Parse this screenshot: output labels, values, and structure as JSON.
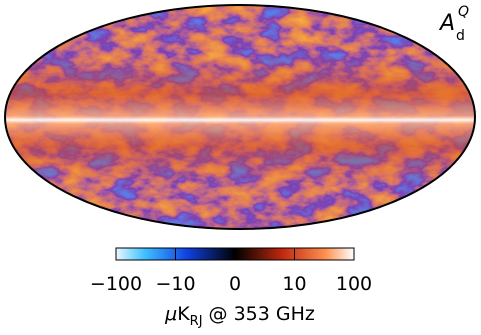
{
  "map": {
    "label": {
      "main": "A",
      "sub": "d",
      "sup": "Q"
    }
  },
  "colorbar": {
    "scale": "symlog",
    "linthresh": 10,
    "lim": [
      -100,
      100
    ],
    "ticks": [
      {
        "value": -100,
        "label": "−100"
      },
      {
        "value": -10,
        "label": "−10"
      },
      0,
      10,
      100
    ],
    "label": {
      "prefix": "μ",
      "unit": "K",
      "sub": "RJ",
      "rest": "@ 353 GHz"
    }
  }
}
